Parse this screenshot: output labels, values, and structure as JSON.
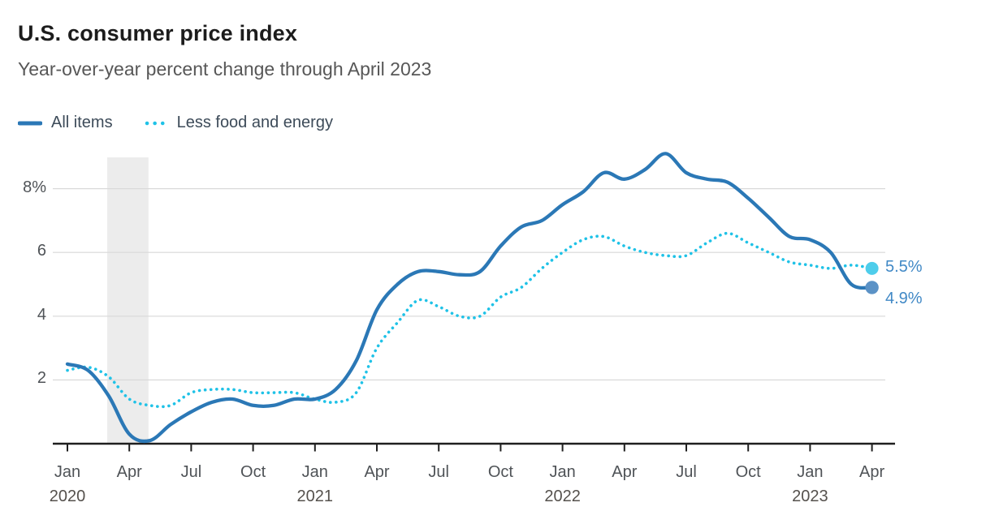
{
  "chart_data": {
    "type": "line",
    "title": "U.S. consumer price index",
    "subtitle": "Year-over-year percent change through April 2023",
    "x": [
      "2020-01",
      "2020-02",
      "2020-03",
      "2020-04",
      "2020-05",
      "2020-06",
      "2020-07",
      "2020-08",
      "2020-09",
      "2020-10",
      "2020-11",
      "2020-12",
      "2021-01",
      "2021-02",
      "2021-03",
      "2021-04",
      "2021-05",
      "2021-06",
      "2021-07",
      "2021-08",
      "2021-09",
      "2021-10",
      "2021-11",
      "2021-12",
      "2022-01",
      "2022-02",
      "2022-03",
      "2022-04",
      "2022-05",
      "2022-06",
      "2022-07",
      "2022-08",
      "2022-09",
      "2022-10",
      "2022-11",
      "2022-12",
      "2023-01",
      "2023-02",
      "2023-03",
      "2023-04"
    ],
    "series": [
      {
        "name": "All items",
        "line_style": "solid",
        "color": "#2B78B6",
        "dot_color": "#5B92C6",
        "end_label": "4.9%",
        "end_value": 4.9,
        "values": [
          2.5,
          2.3,
          1.5,
          0.3,
          0.1,
          0.6,
          1.0,
          1.3,
          1.4,
          1.2,
          1.2,
          1.4,
          1.4,
          1.7,
          2.6,
          4.2,
          5.0,
          5.4,
          5.4,
          5.3,
          5.4,
          6.2,
          6.8,
          7.0,
          7.5,
          7.9,
          8.5,
          8.3,
          8.6,
          9.1,
          8.5,
          8.3,
          8.2,
          7.7,
          7.1,
          6.5,
          6.4,
          6.0,
          5.0,
          4.9
        ]
      },
      {
        "name": "Less food and energy",
        "line_style": "dotted",
        "color": "#1FC2E7",
        "dot_color": "#4ECDEB",
        "end_label": "5.5%",
        "end_value": 5.5,
        "values": [
          2.3,
          2.4,
          2.1,
          1.4,
          1.2,
          1.2,
          1.6,
          1.7,
          1.7,
          1.6,
          1.6,
          1.6,
          1.4,
          1.3,
          1.6,
          3.0,
          3.8,
          4.5,
          4.3,
          4.0,
          4.0,
          4.6,
          4.9,
          5.5,
          6.0,
          6.4,
          6.5,
          6.2,
          6.0,
          5.9,
          5.9,
          6.3,
          6.6,
          6.3,
          6.0,
          5.7,
          5.6,
          5.5,
          5.6,
          5.5
        ]
      }
    ],
    "y_ticks": [
      {
        "value": 2,
        "label": "2"
      },
      {
        "value": 4,
        "label": "4"
      },
      {
        "value": 6,
        "label": "6"
      },
      {
        "value": 8,
        "label": "8%"
      }
    ],
    "ylim": [
      0,
      9
    ],
    "x_ticks": [
      {
        "month_index": 0,
        "label": "Jan"
      },
      {
        "month_index": 3,
        "label": "Apr"
      },
      {
        "month_index": 6,
        "label": "Jul"
      },
      {
        "month_index": 9,
        "label": "Oct"
      },
      {
        "month_index": 12,
        "label": "Jan"
      },
      {
        "month_index": 15,
        "label": "Apr"
      },
      {
        "month_index": 18,
        "label": "Jul"
      },
      {
        "month_index": 21,
        "label": "Oct"
      },
      {
        "month_index": 24,
        "label": "Jan"
      },
      {
        "month_index": 27,
        "label": "Apr"
      },
      {
        "month_index": 30,
        "label": "Jul"
      },
      {
        "month_index": 33,
        "label": "Oct"
      },
      {
        "month_index": 36,
        "label": "Jan"
      },
      {
        "month_index": 39,
        "label": "Apr"
      }
    ],
    "year_labels": [
      {
        "month_index": 0,
        "label": "2020"
      },
      {
        "month_index": 12,
        "label": "2021"
      },
      {
        "month_index": 24,
        "label": "2022"
      },
      {
        "month_index": 36,
        "label": "2023"
      }
    ],
    "recession_band": {
      "from": "2020-02",
      "to": "2020-04",
      "color": "#ECECEC"
    },
    "grid": true,
    "legend_position": "top-left",
    "colors": {
      "axis": "#1F1F1F",
      "gridline": "#D9D9D9",
      "tick_label": "#4F5357",
      "end_value_label": "#4189C6",
      "title": "#1C1C1C",
      "subtitle": "#575757",
      "legend_text": "#3D4B59",
      "background": "#FFFFFF"
    }
  }
}
